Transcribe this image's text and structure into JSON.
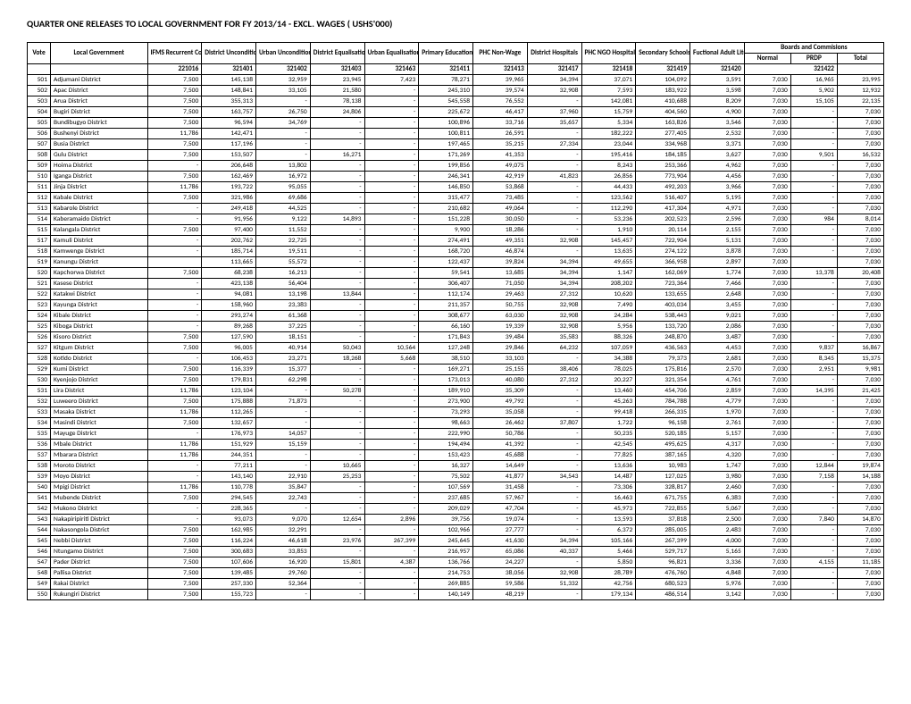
{
  "title": "QUARTER ONE RELEASES TO LOCAL GOVERNMENT FOR FY 2013/14 - EXCL. WAGES ( USHS'000)",
  "headers": {
    "vote": "Vote",
    "local_government": "Local Government",
    "ifms": "IFMS Recurrent Costs",
    "dist_uncond": "District Unconditional Grant",
    "urban_uncond": "Urban Unconditional Grant",
    "dist_eq": "District Equalisation Grant",
    "urban_eq": "Urban Equalisation Grant",
    "primary_ed": "Primary Education",
    "phc_nonwage": "PHC Non-Wage",
    "dist_hosp": "District Hospitals",
    "phc_ngo": "PHC NGO Hospitals",
    "secondary": "Secondary Schools",
    "literacy": "Fuctional Adult Literacy",
    "boards": "Boards and Commisions",
    "normal": "Normal",
    "prdp": "PRDP",
    "total": "Total"
  },
  "codes": [
    "221016",
    "321401",
    "321402",
    "321403",
    "321463",
    "321411",
    "321413",
    "321417",
    "321418",
    "321419",
    "321420",
    "",
    "321422",
    ""
  ],
  "rows": [
    {
      "vote": "501",
      "name": "Adjumani District",
      "v": [
        "7,500",
        "145,138",
        "32,959",
        "23,945",
        "7,423",
        "78,271",
        "39,965",
        "34,394",
        "37,071",
        "104,092",
        "3,591",
        "7,030",
        "16,965",
        "23,995"
      ]
    },
    {
      "vote": "502",
      "name": "Apac District",
      "v": [
        "7,500",
        "148,841",
        "33,105",
        "21,580",
        "-",
        "245,310",
        "39,574",
        "32,908",
        "7,593",
        "183,922",
        "3,598",
        "7,030",
        "5,902",
        "12,932"
      ]
    },
    {
      "vote": "503",
      "name": "Arua District",
      "v": [
        "7,500",
        "355,313",
        "-",
        "78,138",
        "-",
        "545,558",
        "76,552",
        "-",
        "142,081",
        "410,688",
        "8,209",
        "7,030",
        "15,105",
        "22,135"
      ]
    },
    {
      "vote": "504",
      "name": "Bugiri District",
      "v": [
        "7,500",
        "163,757",
        "26,750",
        "24,806",
        "-",
        "225,672",
        "46,417",
        "37,960",
        "15,759",
        "404,560",
        "4,900",
        "7,030",
        "-",
        "7,030"
      ]
    },
    {
      "vote": "505",
      "name": "Bundibugyo District",
      "v": [
        "7,500",
        "96,594",
        "34,769",
        "-",
        "-",
        "100,896",
        "33,716",
        "35,657",
        "5,334",
        "163,826",
        "3,546",
        "7,030",
        "-",
        "7,030"
      ]
    },
    {
      "vote": "506",
      "name": "Bushenyi District",
      "v": [
        "11,786",
        "142,471",
        "-",
        "-",
        "-",
        "100,811",
        "26,591",
        "-",
        "182,222",
        "277,405",
        "2,532",
        "7,030",
        "-",
        "7,030"
      ]
    },
    {
      "vote": "507",
      "name": "Busia District",
      "v": [
        "7,500",
        "117,196",
        "-",
        "-",
        "-",
        "197,465",
        "35,215",
        "27,334",
        "23,044",
        "334,968",
        "3,371",
        "7,030",
        "-",
        "7,030"
      ]
    },
    {
      "vote": "508",
      "name": "Gulu District",
      "v": [
        "7,500",
        "153,507",
        "-",
        "16,271",
        "-",
        "171,269",
        "41,353",
        "-",
        "195,416",
        "184,185",
        "3,627",
        "7,030",
        "9,501",
        "16,532"
      ]
    },
    {
      "vote": "509",
      "name": "Hoima District",
      "v": [
        "-",
        "206,648",
        "13,802",
        "-",
        "-",
        "199,856",
        "49,075",
        "-",
        "8,243",
        "253,366",
        "4,962",
        "7,030",
        "-",
        "7,030"
      ]
    },
    {
      "vote": "510",
      "name": "Iganga District",
      "v": [
        "7,500",
        "162,469",
        "16,972",
        "-",
        "-",
        "246,341",
        "42,919",
        "41,823",
        "26,856",
        "773,904",
        "4,456",
        "7,030",
        "-",
        "7,030"
      ]
    },
    {
      "vote": "511",
      "name": "Jinja District",
      "v": [
        "11,786",
        "193,722",
        "95,055",
        "-",
        "-",
        "146,850",
        "53,868",
        "-",
        "44,433",
        "492,203",
        "3,966",
        "7,030",
        "-",
        "7,030"
      ]
    },
    {
      "vote": "512",
      "name": "Kabale District",
      "v": [
        "7,500",
        "321,986",
        "69,686",
        "-",
        "-",
        "315,477",
        "73,485",
        "-",
        "123,562",
        "516,407",
        "5,195",
        "7,030",
        "-",
        "7,030"
      ]
    },
    {
      "vote": "513",
      "name": "Kabarole District",
      "v": [
        "-",
        "249,418",
        "44,525",
        "-",
        "-",
        "210,682",
        "49,064",
        "-",
        "112,290",
        "417,304",
        "4,971",
        "7,030",
        "-",
        "7,030"
      ]
    },
    {
      "vote": "514",
      "name": "Kaberamaido District",
      "v": [
        "-",
        "91,956",
        "9,122",
        "14,893",
        "-",
        "151,228",
        "30,050",
        "-",
        "53,236",
        "202,523",
        "2,596",
        "7,030",
        "984",
        "8,014"
      ]
    },
    {
      "vote": "515",
      "name": "Kalangala District",
      "v": [
        "7,500",
        "97,400",
        "11,552",
        "-",
        "-",
        "9,900",
        "18,286",
        "-",
        "1,910",
        "20,114",
        "2,155",
        "7,030",
        "-",
        "7,030"
      ]
    },
    {
      "vote": "517",
      "name": "Kamuli District",
      "v": [
        "-",
        "202,762",
        "22,725",
        "-",
        "-",
        "274,491",
        "49,351",
        "32,908",
        "145,457",
        "722,904",
        "5,131",
        "7,030",
        "-",
        "7,030"
      ]
    },
    {
      "vote": "518",
      "name": "Kamwenge District",
      "v": [
        "-",
        "185,714",
        "19,511",
        "-",
        "-",
        "168,720",
        "46,874",
        "-",
        "13,635",
        "274,122",
        "3,878",
        "7,030",
        "-",
        "7,030"
      ]
    },
    {
      "vote": "519",
      "name": "Kanungu District",
      "v": [
        "",
        "113,665",
        "55,572",
        "-",
        "-",
        "122,437",
        "39,824",
        "34,394",
        "49,655",
        "366,958",
        "2,897",
        "7,030",
        "",
        "7,030"
      ]
    },
    {
      "vote": "520",
      "name": "Kapchorwa District",
      "v": [
        "7,500",
        "68,238",
        "16,213",
        "-",
        "-",
        "59,541",
        "13,685",
        "34,394",
        "1,147",
        "162,069",
        "1,774",
        "7,030",
        "13,378",
        "20,408"
      ]
    },
    {
      "vote": "521",
      "name": "Kasese District",
      "v": [
        "-",
        "423,138",
        "56,404",
        "-",
        "-",
        "306,407",
        "71,050",
        "34,394",
        "208,202",
        "723,364",
        "7,466",
        "7,030",
        "-",
        "7,030"
      ]
    },
    {
      "vote": "522",
      "name": "Katakwi District",
      "v": [
        "-",
        "94,081",
        "13,198",
        "13,844",
        "-",
        "112,174",
        "29,463",
        "27,312",
        "10,620",
        "133,655",
        "2,648",
        "7,030",
        "-",
        "7,030"
      ]
    },
    {
      "vote": "523",
      "name": "Kayunga District",
      "v": [
        "-",
        "158,960",
        "23,383",
        "-",
        "-",
        "211,357",
        "50,755",
        "32,908",
        "7,490",
        "403,034",
        "3,455",
        "7,030",
        "-",
        "7,030"
      ]
    },
    {
      "vote": "524",
      "name": "Kibale District",
      "v": [
        "-",
        "293,274",
        "61,368",
        "-",
        "-",
        "308,677",
        "63,030",
        "32,908",
        "24,284",
        "538,443",
        "9,021",
        "7,030",
        "-",
        "7,030"
      ]
    },
    {
      "vote": "525",
      "name": "Kiboga District",
      "v": [
        "-",
        "89,268",
        "37,225",
        "-",
        "-",
        "66,160",
        "19,339",
        "32,908",
        "5,956",
        "133,720",
        "2,086",
        "7,030",
        "-",
        "7,030"
      ]
    },
    {
      "vote": "526",
      "name": "Kisoro District",
      "v": [
        "7,500",
        "127,590",
        "18,151",
        "-",
        "-",
        "171,843",
        "39,484",
        "35,583",
        "88,326",
        "248,870",
        "3,487",
        "7,030",
        "-",
        "7,030"
      ]
    },
    {
      "vote": "527",
      "name": "Kitgum District",
      "v": [
        "7,500",
        "96,005",
        "40,914",
        "50,043",
        "10,564",
        "127,248",
        "29,846",
        "64,232",
        "107,059",
        "436,563",
        "4,453",
        "7,030",
        "9,837",
        "16,867"
      ]
    },
    {
      "vote": "528",
      "name": "Kotido District",
      "v": [
        "-",
        "106,453",
        "23,271",
        "18,268",
        "5,668",
        "38,510",
        "33,103",
        "-",
        "34,388",
        "79,373",
        "2,681",
        "7,030",
        "8,345",
        "15,375"
      ]
    },
    {
      "vote": "529",
      "name": "Kumi District",
      "v": [
        "7,500",
        "116,339",
        "15,377",
        "-",
        "-",
        "169,271",
        "25,155",
        "38,406",
        "78,025",
        "175,816",
        "2,570",
        "7,030",
        "2,951",
        "9,981"
      ]
    },
    {
      "vote": "530",
      "name": "Kyenjojo District",
      "v": [
        "7,500",
        "179,831",
        "62,298",
        "-",
        "-",
        "173,013",
        "40,080",
        "27,312",
        "20,227",
        "321,354",
        "4,761",
        "7,030",
        "-",
        "7,030"
      ]
    },
    {
      "vote": "531",
      "name": "Lira District",
      "v": [
        "11,786",
        "123,104",
        "-",
        "50,278",
        "-",
        "189,910",
        "35,309",
        "-",
        "13,460",
        "454,706",
        "2,859",
        "7,030",
        "14,395",
        "21,425"
      ]
    },
    {
      "vote": "532",
      "name": "Luweero District",
      "v": [
        "7,500",
        "175,888",
        "71,873",
        "-",
        "-",
        "273,900",
        "49,792",
        "-",
        "45,263",
        "784,788",
        "4,779",
        "7,030",
        "-",
        "7,030"
      ]
    },
    {
      "vote": "533",
      "name": "Masaka District",
      "v": [
        "11,786",
        "112,265",
        "-",
        "-",
        "-",
        "73,293",
        "35,058",
        "-",
        "99,418",
        "266,335",
        "1,970",
        "7,030",
        "-",
        "7,030"
      ]
    },
    {
      "vote": "534",
      "name": "Masindi District",
      "v": [
        "7,500",
        "132,657",
        "-",
        "-",
        "-",
        "98,663",
        "26,462",
        "37,807",
        "1,722",
        "96,158",
        "2,761",
        "7,030",
        "-",
        "7,030"
      ]
    },
    {
      "vote": "535",
      "name": "Mayuge District",
      "v": [
        "-",
        "176,973",
        "14,057",
        "-",
        "-",
        "222,990",
        "50,786",
        "-",
        "50,235",
        "520,185",
        "5,157",
        "7,030",
        "-",
        "7,030"
      ]
    },
    {
      "vote": "536",
      "name": "Mbale District",
      "v": [
        "11,786",
        "151,929",
        "15,159",
        "-",
        "-",
        "194,494",
        "41,392",
        "-",
        "42,545",
        "495,625",
        "4,317",
        "7,030",
        "-",
        "7,030"
      ]
    },
    {
      "vote": "537",
      "name": "Mbarara District",
      "v": [
        "11,786",
        "244,351",
        "-",
        "-",
        "-",
        "153,423",
        "45,688",
        "-",
        "77,825",
        "387,165",
        "4,320",
        "7,030",
        "-",
        "7,030"
      ]
    },
    {
      "vote": "538",
      "name": "Moroto District",
      "v": [
        "-",
        "77,211",
        "-",
        "10,665",
        "-",
        "16,327",
        "14,649",
        "-",
        "13,636",
        "10,983",
        "1,747",
        "7,030",
        "12,844",
        "19,874"
      ]
    },
    {
      "vote": "539",
      "name": "Moyo District",
      "v": [
        "-",
        "143,140",
        "22,910",
        "25,253",
        "-",
        "75,502",
        "41,877",
        "34,543",
        "14,487",
        "127,025",
        "3,980",
        "7,030",
        "7,158",
        "14,188"
      ]
    },
    {
      "vote": "540",
      "name": "Mpigi District",
      "v": [
        "11,786",
        "110,778",
        "35,847",
        "-",
        "-",
        "107,569",
        "31,458",
        "-",
        "73,306",
        "328,817",
        "2,460",
        "7,030",
        "-",
        "7,030"
      ]
    },
    {
      "vote": "541",
      "name": "Mubende District",
      "v": [
        "7,500",
        "294,545",
        "22,743",
        "-",
        "-",
        "237,685",
        "57,967",
        "-",
        "16,463",
        "671,755",
        "6,383",
        "7,030",
        "-",
        "7,030"
      ]
    },
    {
      "vote": "542",
      "name": "Mukono District",
      "v": [
        "-",
        "228,365",
        "-",
        "-",
        "-",
        "209,029",
        "47,704",
        "-",
        "45,973",
        "722,855",
        "5,067",
        "7,030",
        "-",
        "7,030"
      ]
    },
    {
      "vote": "543",
      "name": "Nakapiripiriti District",
      "v": [
        "-",
        "93,073",
        "9,070",
        "12,654",
        "2,896",
        "39,756",
        "19,074",
        "-",
        "13,593",
        "37,818",
        "2,500",
        "7,030",
        "7,840",
        "14,870"
      ]
    },
    {
      "vote": "544",
      "name": "Nakasongola District",
      "v": [
        "7,500",
        "162,985",
        "32,291",
        "-",
        "-",
        "102,966",
        "27,777",
        "-",
        "6,372",
        "285,005",
        "2,483",
        "7,030",
        "-",
        "7,030"
      ]
    },
    {
      "vote": "545",
      "name": "Nebbi District",
      "v": [
        "7,500",
        "116,224",
        "46,618",
        "23,976",
        "267,399",
        "245,645",
        "41,630",
        "34,394",
        "105,166",
        "267,399",
        "4,000",
        "7,030",
        "-",
        "7,030"
      ]
    },
    {
      "vote": "546",
      "name": "Ntungamo District",
      "v": [
        "7,500",
        "300,683",
        "33,853",
        "-",
        "-",
        "216,957",
        "65,086",
        "40,337",
        "5,466",
        "529,717",
        "5,165",
        "7,030",
        "-",
        "7,030"
      ]
    },
    {
      "vote": "547",
      "name": "Pader District",
      "v": [
        "7,500",
        "107,606",
        "16,920",
        "15,801",
        "4,387",
        "136,766",
        "24,227",
        "-",
        "5,850",
        "96,821",
        "3,336",
        "7,030",
        "4,155",
        "11,185"
      ]
    },
    {
      "vote": "548",
      "name": "Pallisa District",
      "v": [
        "7,500",
        "139,485",
        "29,760",
        "-",
        "-",
        "214,753",
        "38,056",
        "32,908",
        "28,789",
        "476,760",
        "4,848",
        "7,030",
        "-",
        "7,030"
      ]
    },
    {
      "vote": "549",
      "name": "Rakai District",
      "v": [
        "7,500",
        "257,330",
        "52,364",
        "-",
        "-",
        "269,885",
        "59,586",
        "51,332",
        "42,756",
        "680,523",
        "5,976",
        "7,030",
        "-",
        "7,030"
      ]
    },
    {
      "vote": "550",
      "name": "Rukungiri District",
      "v": [
        "7,500",
        "155,723",
        "-",
        "-",
        "-",
        "140,149",
        "48,219",
        "-",
        "179,134",
        "486,514",
        "3,142",
        "7,030",
        "-",
        "7,030"
      ]
    }
  ]
}
